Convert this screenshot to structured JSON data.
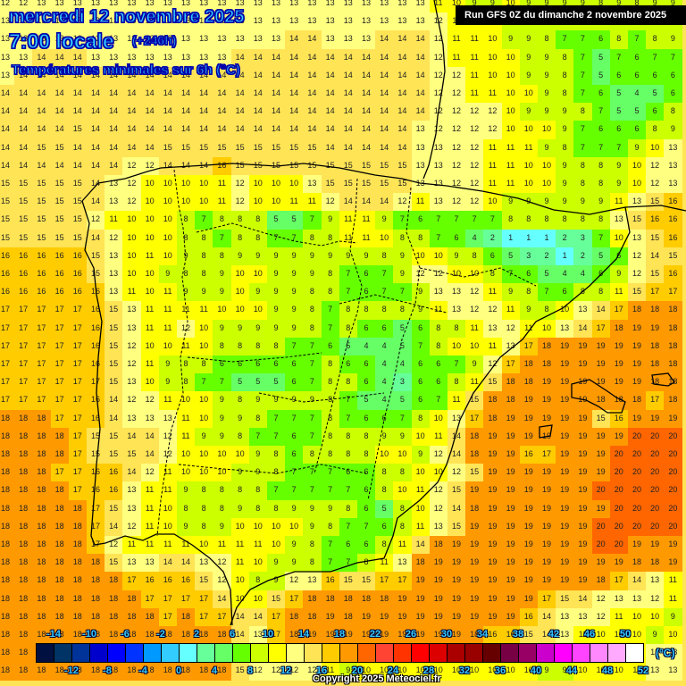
{
  "header": {
    "date": "mercredi 12 novembre 2025",
    "time": "7:00 locale",
    "lead": "(+246h)",
    "variable": "Températures minimales sur 6h (°C)",
    "run": "Run GFS 0Z du dimanche 2 novembre 2025"
  },
  "footer": {
    "copyright": "Copyright 2025 Meteociel.fr",
    "unit": "(°C)"
  },
  "legend": {
    "top_labels": [
      "-14",
      "-10",
      "-6",
      "-2",
      "2",
      "6",
      "10",
      "14",
      "18",
      "22",
      "26",
      "30",
      "34",
      "38",
      "42",
      "46",
      "50"
    ],
    "bottom_labels": [
      "-12",
      "-8",
      "-4",
      "0",
      "4",
      "8",
      "12",
      "16",
      "20",
      "24",
      "28",
      "32",
      "36",
      "40",
      "44",
      "48",
      "52"
    ],
    "colors": [
      "#001040",
      "#003366",
      "#003399",
      "#0000cc",
      "#0000ff",
      "#0033ff",
      "#0099ff",
      "#33ccff",
      "#66ffff",
      "#66ff99",
      "#66ff66",
      "#66ff00",
      "#ccff00",
      "#ffff00",
      "#ffff80",
      "#ffe455",
      "#ffcc00",
      "#ff9900",
      "#ff6600",
      "#ff4433",
      "#ff3300",
      "#ff0000",
      "#dd0000",
      "#aa0000",
      "#990000",
      "#660000",
      "#770044",
      "#990066",
      "#cc00cc",
      "#ff00ff",
      "#ff44ff",
      "#ff88ff",
      "#ffaaff",
      "#ffffff"
    ],
    "min": -14,
    "step": 2
  },
  "map": {
    "cols": 38,
    "rows": 38,
    "spacing": 20.2,
    "grid": [
      [
        12,
        12,
        13,
        13,
        13,
        13,
        13,
        13,
        13,
        13,
        13,
        13,
        13,
        13,
        13,
        13,
        13,
        13,
        13,
        13,
        13,
        13,
        13,
        13,
        11,
        10,
        9,
        9,
        10,
        9,
        9,
        9,
        9,
        8,
        9,
        8,
        9,
        9
      ],
      [
        13,
        13,
        13,
        13,
        13,
        13,
        13,
        13,
        13,
        13,
        13,
        13,
        13,
        13,
        13,
        13,
        13,
        13,
        13,
        13,
        13,
        13,
        13,
        13,
        12,
        11,
        10,
        10,
        9,
        9,
        9,
        8,
        8,
        8,
        8,
        8,
        8,
        8
      ],
      [
        13,
        13,
        13,
        13,
        13,
        13,
        13,
        13,
        13,
        13,
        13,
        13,
        13,
        13,
        13,
        13,
        14,
        14,
        13,
        13,
        13,
        14,
        14,
        14,
        12,
        11,
        11,
        10,
        9,
        9,
        8,
        7,
        7,
        6,
        8,
        7,
        8,
        9
      ],
      [
        13,
        13,
        14,
        14,
        14,
        13,
        13,
        13,
        13,
        13,
        13,
        13,
        13,
        14,
        14,
        14,
        14,
        14,
        14,
        14,
        14,
        14,
        14,
        14,
        12,
        11,
        11,
        10,
        10,
        9,
        9,
        8,
        7,
        5,
        7,
        6,
        7,
        7
      ],
      [
        13,
        14,
        14,
        14,
        14,
        14,
        14,
        14,
        14,
        14,
        14,
        14,
        14,
        14,
        14,
        14,
        14,
        14,
        14,
        14,
        14,
        14,
        14,
        14,
        12,
        12,
        11,
        10,
        10,
        9,
        9,
        8,
        7,
        5,
        6,
        6,
        6,
        6
      ],
      [
        14,
        14,
        14,
        14,
        14,
        14,
        14,
        14,
        14,
        14,
        14,
        14,
        14,
        14,
        14,
        14,
        14,
        14,
        14,
        14,
        14,
        14,
        14,
        14,
        12,
        12,
        11,
        11,
        10,
        10,
        9,
        8,
        7,
        6,
        5,
        4,
        5,
        6
      ],
      [
        14,
        14,
        14,
        14,
        14,
        14,
        14,
        14,
        14,
        14,
        14,
        14,
        14,
        14,
        14,
        14,
        14,
        14,
        14,
        14,
        14,
        14,
        14,
        14,
        12,
        12,
        12,
        12,
        10,
        9,
        9,
        9,
        8,
        7,
        5,
        5,
        6,
        8
      ],
      [
        14,
        14,
        14,
        14,
        15,
        14,
        14,
        14,
        14,
        14,
        14,
        14,
        14,
        14,
        14,
        14,
        14,
        14,
        14,
        14,
        14,
        14,
        14,
        13,
        12,
        12,
        12,
        12,
        10,
        10,
        10,
        9,
        7,
        6,
        6,
        6,
        8,
        9
      ],
      [
        14,
        14,
        15,
        15,
        14,
        14,
        14,
        14,
        14,
        15,
        15,
        15,
        15,
        15,
        15,
        15,
        15,
        15,
        14,
        14,
        14,
        14,
        14,
        13,
        13,
        12,
        12,
        11,
        11,
        11,
        9,
        8,
        7,
        7,
        7,
        9,
        10,
        13
      ],
      [
        14,
        14,
        14,
        14,
        14,
        14,
        14,
        12,
        12,
        14,
        14,
        14,
        16,
        15,
        15,
        15,
        15,
        15,
        15,
        15,
        15,
        15,
        15,
        13,
        13,
        12,
        12,
        11,
        11,
        10,
        10,
        9,
        8,
        8,
        9,
        10,
        12,
        13
      ],
      [
        15,
        15,
        15,
        15,
        15,
        14,
        13,
        12,
        10,
        10,
        10,
        10,
        11,
        12,
        10,
        10,
        10,
        13,
        15,
        15,
        15,
        15,
        15,
        13,
        13,
        12,
        12,
        11,
        11,
        10,
        10,
        9,
        8,
        8,
        9,
        10,
        12,
        13
      ],
      [
        15,
        15,
        15,
        15,
        15,
        14,
        13,
        12,
        10,
        10,
        10,
        10,
        11,
        12,
        10,
        10,
        11,
        11,
        12,
        14,
        14,
        14,
        12,
        11,
        13,
        12,
        12,
        10,
        9,
        9,
        9,
        9,
        9,
        9,
        11,
        13,
        15,
        16
      ],
      [
        15,
        15,
        15,
        15,
        15,
        12,
        11,
        10,
        10,
        10,
        8,
        7,
        8,
        8,
        8,
        5,
        5,
        7,
        9,
        11,
        11,
        9,
        7,
        6,
        7,
        7,
        7,
        7,
        8,
        8,
        8,
        8,
        8,
        8,
        13,
        15,
        16,
        16
      ],
      [
        15,
        15,
        15,
        15,
        15,
        14,
        12,
        10,
        10,
        10,
        8,
        8,
        7,
        8,
        8,
        7,
        7,
        8,
        8,
        11,
        11,
        10,
        8,
        8,
        7,
        6,
        4,
        2,
        1,
        1,
        1,
        2,
        3,
        7,
        10,
        13,
        15,
        16
      ],
      [
        16,
        16,
        16,
        16,
        16,
        15,
        13,
        10,
        11,
        10,
        9,
        8,
        8,
        9,
        9,
        9,
        9,
        9,
        9,
        9,
        9,
        8,
        9,
        10,
        10,
        9,
        8,
        6,
        5,
        3,
        2,
        1,
        2,
        5,
        6,
        12,
        14,
        15
      ],
      [
        16,
        16,
        16,
        16,
        16,
        15,
        13,
        10,
        10,
        9,
        8,
        8,
        9,
        10,
        10,
        9,
        9,
        9,
        8,
        7,
        6,
        7,
        9,
        12,
        12,
        10,
        10,
        8,
        7,
        6,
        5,
        4,
        4,
        6,
        9,
        12,
        15,
        16
      ],
      [
        16,
        16,
        16,
        16,
        16,
        16,
        13,
        11,
        10,
        11,
        9,
        9,
        9,
        10,
        9,
        9,
        9,
        8,
        8,
        7,
        6,
        7,
        7,
        9,
        13,
        13,
        12,
        11,
        9,
        8,
        7,
        6,
        8,
        8,
        11,
        15,
        17,
        17
      ],
      [
        17,
        17,
        17,
        17,
        17,
        16,
        15,
        13,
        11,
        11,
        11,
        11,
        10,
        10,
        10,
        9,
        9,
        8,
        7,
        8,
        8,
        8,
        8,
        9,
        11,
        13,
        12,
        12,
        11,
        9,
        8,
        10,
        13,
        14,
        17,
        18,
        18,
        18
      ],
      [
        17,
        17,
        17,
        17,
        17,
        16,
        15,
        13,
        11,
        11,
        12,
        10,
        9,
        9,
        9,
        9,
        9,
        8,
        7,
        8,
        6,
        6,
        5,
        6,
        8,
        8,
        11,
        13,
        12,
        11,
        10,
        13,
        14,
        17,
        18,
        19,
        19,
        18
      ],
      [
        17,
        17,
        17,
        17,
        17,
        16,
        15,
        12,
        10,
        10,
        11,
        10,
        8,
        8,
        8,
        8,
        7,
        7,
        6,
        5,
        4,
        4,
        5,
        7,
        8,
        10,
        10,
        11,
        13,
        17,
        18,
        19,
        19,
        19,
        19,
        19,
        18,
        18
      ],
      [
        17,
        17,
        17,
        17,
        17,
        16,
        15,
        12,
        11,
        9,
        8,
        8,
        6,
        6,
        6,
        6,
        6,
        7,
        8,
        6,
        6,
        4,
        4,
        6,
        6,
        7,
        9,
        12,
        17,
        18,
        18,
        19,
        19,
        19,
        19,
        19,
        18,
        18
      ],
      [
        17,
        17,
        17,
        17,
        17,
        17,
        15,
        13,
        10,
        9,
        8,
        7,
        7,
        5,
        5,
        5,
        6,
        7,
        8,
        8,
        6,
        4,
        3,
        6,
        6,
        8,
        11,
        15,
        18,
        18,
        19,
        19,
        19,
        19,
        19,
        19,
        18,
        18
      ],
      [
        17,
        17,
        17,
        17,
        17,
        16,
        14,
        12,
        12,
        11,
        10,
        10,
        9,
        8,
        9,
        9,
        9,
        9,
        8,
        7,
        5,
        4,
        5,
        6,
        7,
        11,
        15,
        18,
        18,
        19,
        19,
        19,
        19,
        18,
        18,
        18,
        17,
        18
      ],
      [
        18,
        18,
        18,
        17,
        17,
        16,
        14,
        13,
        13,
        13,
        11,
        10,
        9,
        9,
        8,
        7,
        7,
        7,
        8,
        7,
        6,
        6,
        7,
        8,
        10,
        13,
        17,
        18,
        19,
        19,
        19,
        19,
        19,
        15,
        16,
        19,
        19,
        19
      ],
      [
        18,
        18,
        18,
        18,
        17,
        15,
        15,
        14,
        14,
        12,
        11,
        9,
        9,
        8,
        7,
        7,
        6,
        7,
        8,
        8,
        8,
        9,
        9,
        10,
        11,
        14,
        18,
        19,
        19,
        19,
        19,
        19,
        19,
        19,
        19,
        20,
        20,
        20
      ],
      [
        18,
        18,
        18,
        18,
        17,
        15,
        15,
        15,
        14,
        12,
        10,
        10,
        10,
        10,
        9,
        8,
        6,
        8,
        8,
        8,
        8,
        10,
        10,
        9,
        12,
        14,
        18,
        19,
        19,
        16,
        17,
        19,
        19,
        19,
        20,
        20,
        20,
        20
      ],
      [
        18,
        18,
        18,
        17,
        17,
        16,
        16,
        14,
        12,
        11,
        10,
        10,
        10,
        9,
        9,
        8,
        7,
        7,
        7,
        6,
        6,
        8,
        8,
        10,
        10,
        12,
        15,
        19,
        19,
        19,
        19,
        19,
        19,
        19,
        20,
        20,
        20,
        20
      ],
      [
        18,
        18,
        18,
        18,
        17,
        16,
        16,
        13,
        11,
        11,
        9,
        8,
        8,
        8,
        8,
        7,
        7,
        7,
        7,
        7,
        6,
        8,
        10,
        11,
        12,
        15,
        19,
        19,
        19,
        19,
        19,
        19,
        19,
        20,
        20,
        20,
        20,
        20
      ],
      [
        18,
        18,
        18,
        18,
        18,
        17,
        15,
        13,
        11,
        10,
        8,
        8,
        8,
        9,
        8,
        8,
        9,
        9,
        9,
        8,
        6,
        5,
        8,
        10,
        12,
        14,
        18,
        19,
        19,
        19,
        19,
        19,
        19,
        19,
        20,
        20,
        20,
        20
      ],
      [
        18,
        18,
        18,
        18,
        18,
        17,
        14,
        12,
        11,
        10,
        9,
        8,
        9,
        10,
        10,
        10,
        10,
        9,
        8,
        7,
        7,
        6,
        8,
        11,
        13,
        15,
        19,
        19,
        19,
        19,
        19,
        19,
        19,
        20,
        20,
        20,
        20,
        20
      ],
      [
        18,
        18,
        18,
        18,
        18,
        17,
        12,
        11,
        11,
        11,
        11,
        10,
        11,
        11,
        11,
        10,
        9,
        8,
        7,
        6,
        6,
        8,
        11,
        14,
        18,
        19,
        19,
        19,
        19,
        19,
        19,
        19,
        19,
        20,
        20,
        19,
        19,
        19
      ],
      [
        18,
        18,
        18,
        18,
        18,
        18,
        15,
        13,
        13,
        14,
        14,
        13,
        12,
        11,
        10,
        9,
        9,
        8,
        7,
        7,
        8,
        11,
        13,
        18,
        19,
        19,
        19,
        19,
        19,
        19,
        19,
        19,
        19,
        19,
        19,
        18,
        18,
        19
      ],
      [
        18,
        18,
        18,
        18,
        18,
        18,
        18,
        17,
        16,
        16,
        16,
        15,
        12,
        10,
        8,
        9,
        12,
        13,
        16,
        15,
        15,
        17,
        17,
        19,
        19,
        19,
        19,
        19,
        19,
        19,
        19,
        19,
        19,
        18,
        17,
        14,
        13,
        11
      ],
      [
        18,
        18,
        18,
        18,
        18,
        18,
        18,
        18,
        17,
        17,
        17,
        17,
        14,
        10,
        10,
        15,
        17,
        18,
        18,
        18,
        18,
        18,
        19,
        19,
        19,
        19,
        19,
        19,
        19,
        19,
        17,
        15,
        14,
        12,
        13,
        13,
        12,
        11
      ],
      [
        18,
        18,
        18,
        18,
        18,
        18,
        18,
        18,
        18,
        17,
        18,
        17,
        17,
        14,
        14,
        17,
        18,
        18,
        19,
        18,
        19,
        19,
        19,
        19,
        19,
        19,
        19,
        19,
        19,
        16,
        14,
        13,
        13,
        12,
        11,
        10,
        10,
        9
      ],
      [
        18,
        18,
        18,
        18,
        18,
        18,
        18,
        18,
        18,
        18,
        18,
        18,
        18,
        14,
        13,
        17,
        18,
        19,
        19,
        19,
        19,
        19,
        19,
        19,
        19,
        19,
        18,
        16,
        16,
        15,
        14,
        13,
        11,
        10,
        10,
        10,
        9,
        10
      ],
      [
        18,
        18,
        18,
        18,
        18,
        18,
        18,
        18,
        18,
        18,
        18,
        18,
        18,
        15,
        12,
        12,
        12,
        12,
        12,
        11,
        9,
        10,
        10,
        10,
        10,
        10,
        10,
        10,
        10,
        10,
        10,
        9,
        10,
        10,
        10,
        11,
        12,
        13
      ],
      [
        18,
        18,
        18,
        18,
        18,
        18,
        18,
        18,
        18,
        18,
        18,
        18,
        18,
        15,
        12,
        12,
        12,
        12,
        11,
        9,
        10,
        10,
        10,
        10,
        10,
        10,
        10,
        10,
        10,
        10,
        9,
        9,
        10,
        10,
        10,
        11,
        13,
        13
      ]
    ]
  }
}
